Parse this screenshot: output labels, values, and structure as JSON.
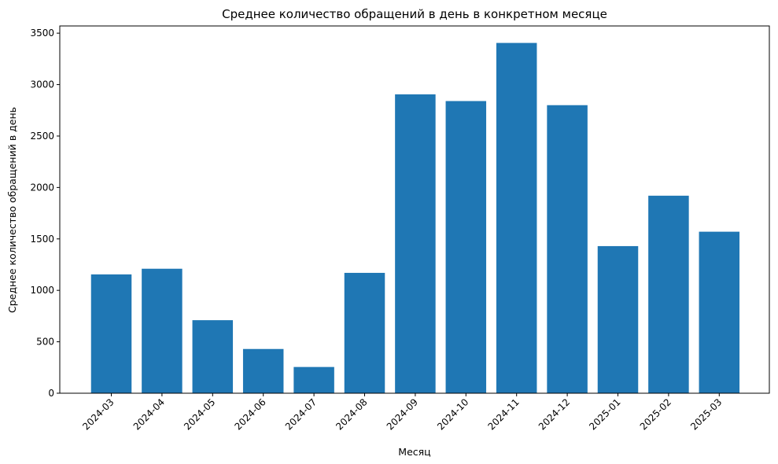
{
  "chart_data": {
    "type": "bar",
    "title": "Среднее количество обращений в день в конкретном месяце",
    "xlabel": "Месяц",
    "ylabel": "Среднее количество обращений в день",
    "categories": [
      "2024-03",
      "2024-04",
      "2024-05",
      "2024-06",
      "2024-07",
      "2024-08",
      "2024-09",
      "2024-10",
      "2024-11",
      "2024-12",
      "2025-01",
      "2025-02",
      "2025-03"
    ],
    "values": [
      1155,
      1210,
      710,
      430,
      255,
      1170,
      2905,
      2840,
      3405,
      2800,
      1430,
      1920,
      1570
    ],
    "ylim": [
      0,
      3570
    ],
    "yticks": [
      0,
      500,
      1000,
      1500,
      2000,
      2500,
      3000,
      3500
    ],
    "grid": false,
    "legend": "none",
    "bar_color": "#1f77b4"
  }
}
